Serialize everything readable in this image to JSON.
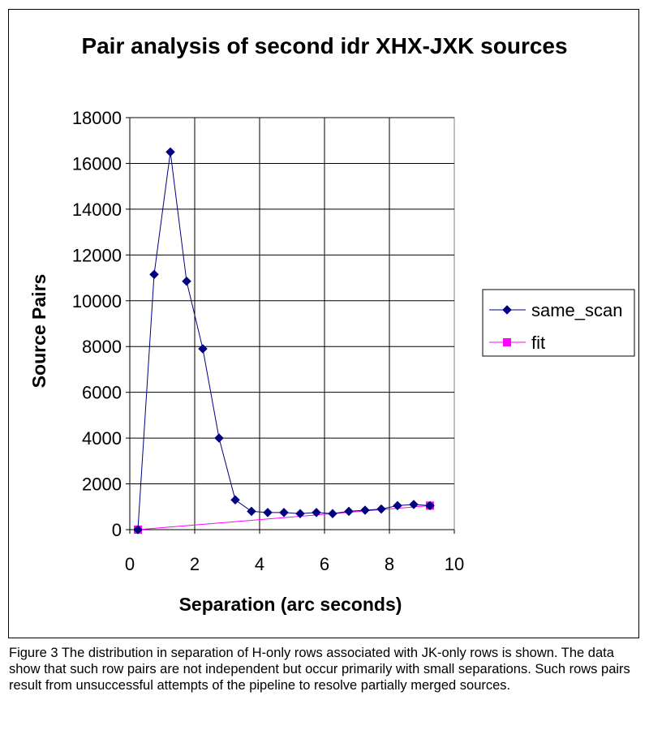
{
  "chart_data": {
    "type": "scatter",
    "title": "Pair analysis of second idr XHX-JXK sources",
    "xlabel": "Separation (arc seconds)",
    "ylabel": "Source Pairs",
    "xlim": [
      0,
      10
    ],
    "ylim": [
      0,
      18000
    ],
    "x_ticks": [
      "0",
      "2",
      "4",
      "6",
      "8",
      "10"
    ],
    "y_ticks": [
      "0",
      "2000",
      "4000",
      "6000",
      "8000",
      "10000",
      "12000",
      "14000",
      "16000",
      "18000"
    ],
    "grid": true,
    "legend_position": "right",
    "series": [
      {
        "name": "same_scan",
        "color": "#000080",
        "marker": "diamond",
        "x": [
          0.25,
          0.75,
          1.25,
          1.75,
          2.25,
          2.75,
          3.25,
          3.75,
          4.25,
          4.75,
          5.25,
          5.75,
          6.25,
          6.75,
          7.25,
          7.75,
          8.25,
          8.75,
          9.25
        ],
        "y": [
          0,
          11150,
          16500,
          10850,
          7900,
          4000,
          1300,
          800,
          750,
          750,
          700,
          750,
          700,
          800,
          850,
          900,
          1050,
          1100,
          1050
        ]
      },
      {
        "name": "fit",
        "color": "#ff00ff",
        "marker": "square",
        "x": [
          0.25,
          9.25
        ],
        "y": [
          0,
          1050
        ]
      }
    ]
  },
  "caption": "Figure 3  The distribution in separation of H-only rows associated with JK-only rows is shown.    The data show that such row pairs are not independent but occur primarily with small separations.  Such rows pairs result from unsuccessful attempts of the pipeline to resolve partially merged sources."
}
